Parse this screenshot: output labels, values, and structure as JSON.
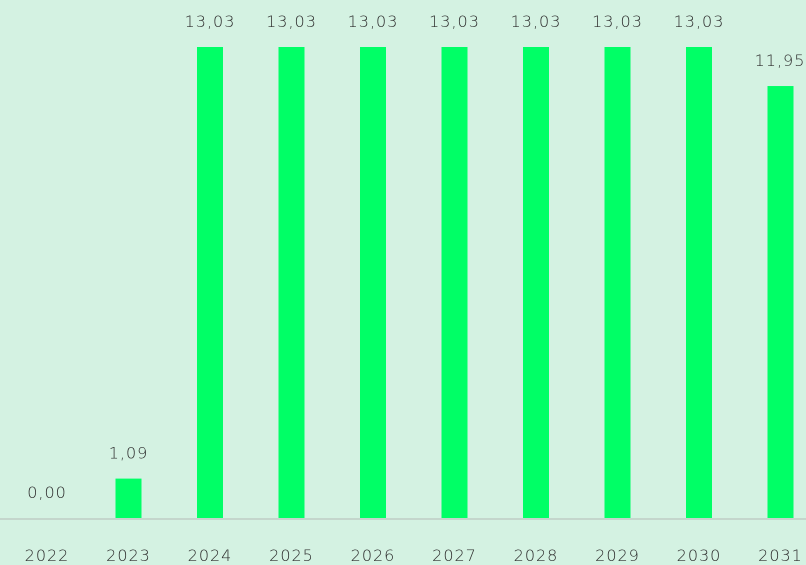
{
  "chart_data": {
    "type": "bar",
    "categories": [
      "2022",
      "2023",
      "2024",
      "2025",
      "2026",
      "2027",
      "2028",
      "2029",
      "2030",
      "2031"
    ],
    "values": [
      0.0,
      1.09,
      13.03,
      13.03,
      13.03,
      13.03,
      13.03,
      13.03,
      13.03,
      11.95
    ],
    "data_labels": [
      "0,00",
      "1,09",
      "13,03",
      "13,03",
      "13,03",
      "13,03",
      "13,03",
      "13,03",
      "13,03",
      "11,95"
    ],
    "ylim": [
      0,
      13.03
    ],
    "grid": false,
    "legend": "none",
    "colors": {
      "background": "#d4f2e2",
      "bar": "#00ff66",
      "text": "#2e2e2e",
      "axis": "#c4d6cc"
    }
  }
}
